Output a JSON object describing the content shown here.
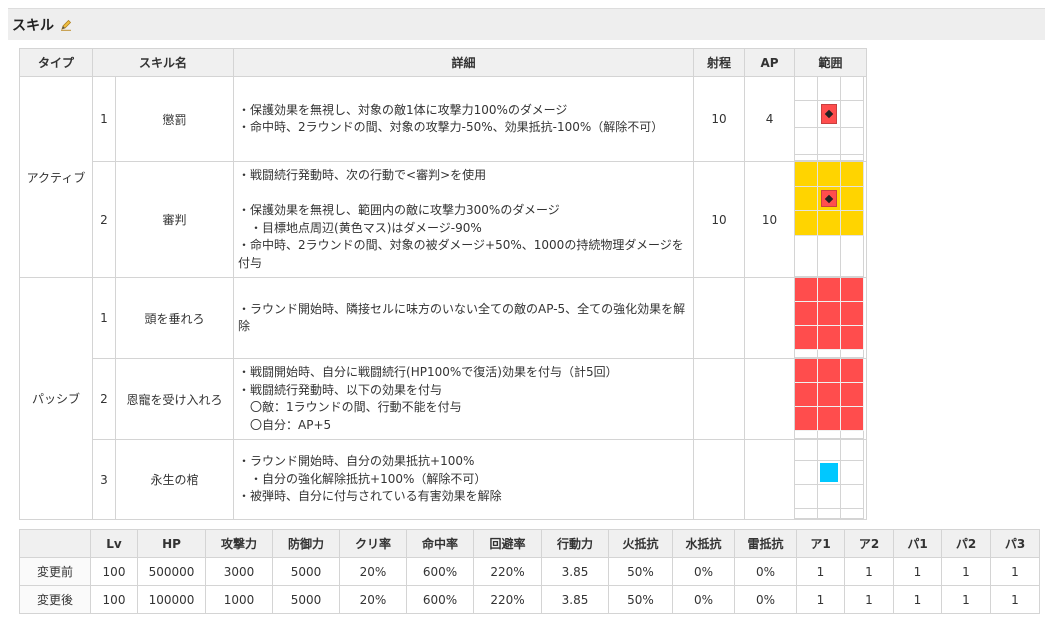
{
  "section": {
    "title": "スキル",
    "edit_icon": "pencil-icon"
  },
  "skill_table": {
    "headers": [
      "タイプ",
      "スキル名",
      "詳細",
      "射程",
      "AP",
      "範囲"
    ],
    "groups": [
      {
        "type": "アクティブ"
      },
      {
        "type": "パッシブ"
      }
    ],
    "rows": [
      {
        "num": "1",
        "name": "懲罰",
        "range": "10",
        "ap": "4",
        "detail": [
          "・保護効果を無視し、対象の敵1体に攻撃力100%のダメージ",
          "・命中時、2ラウンドの間、対象の攻撃力-50%、効果抵抗-100%（解除不可）"
        ]
      },
      {
        "num": "2",
        "name": "審判",
        "range": "10",
        "ap": "10",
        "detail": [
          "・戦闘続行発動時、次の行動で<審判>を使用",
          "",
          "・保護効果を無視し、範囲内の敵に攻撃力300%のダメージ",
          "　・目標地点周辺(黄色マス)はダメージ-90%",
          "・命中時、2ラウンドの間、対象の被ダメージ+50%、1000の持続物理ダメージを",
          "付与"
        ]
      },
      {
        "num": "1",
        "name": "頭を垂れろ",
        "range": "",
        "ap": "",
        "detail": [
          "・ラウンド開始時、隣接セルに味方のいない全ての敵のAP-5、全ての強化効果を解",
          "除"
        ]
      },
      {
        "num": "2",
        "name": "恩寵を受け入れろ",
        "range": "",
        "ap": "",
        "detail": [
          "・戦闘開始時、自分に戦闘続行(HP100%で復活)効果を付与（計5回）",
          "・戦闘続行発動時、以下の効果を付与",
          "　〇敵：1ラウンドの間、行動不能を付与",
          "　〇自分：AP+5"
        ]
      },
      {
        "num": "3",
        "name": "永生の棺",
        "range": "",
        "ap": "",
        "detail": [
          "・ラウンド開始時、自分の効果抵抗+100%",
          "　・自分の強化解除抵抗+100%（解除不可）",
          "・被弾時、自分に付与されている有害効果を解除"
        ]
      }
    ]
  },
  "stat_table": {
    "headers": [
      "",
      "Lv",
      "HP",
      "攻撃力",
      "防御力",
      "クリ率",
      "命中率",
      "回避率",
      "行動力",
      "火抵抗",
      "水抵抗",
      "雷抵抗",
      "ア1",
      "ア2",
      "パ1",
      "パ2",
      "パ3"
    ],
    "rows": [
      {
        "label": "変更前",
        "values": [
          "100",
          "500000",
          "3000",
          "5000",
          "20%",
          "600%",
          "220%",
          "3.85",
          "50%",
          "0%",
          "0%",
          "1",
          "1",
          "1",
          "1",
          "1"
        ]
      },
      {
        "label": "変更後",
        "values": [
          "100",
          "100000",
          "1000",
          "5000",
          "20%",
          "600%",
          "220%",
          "3.85",
          "50%",
          "0%",
          "0%",
          "1",
          "1",
          "1",
          "1",
          "1"
        ]
      }
    ]
  },
  "colors": {
    "range_red": "#ff4d4d",
    "range_yellow": "#ffd400",
    "range_blue": "#00c8ff",
    "header_bg": "#f0f0f0"
  }
}
